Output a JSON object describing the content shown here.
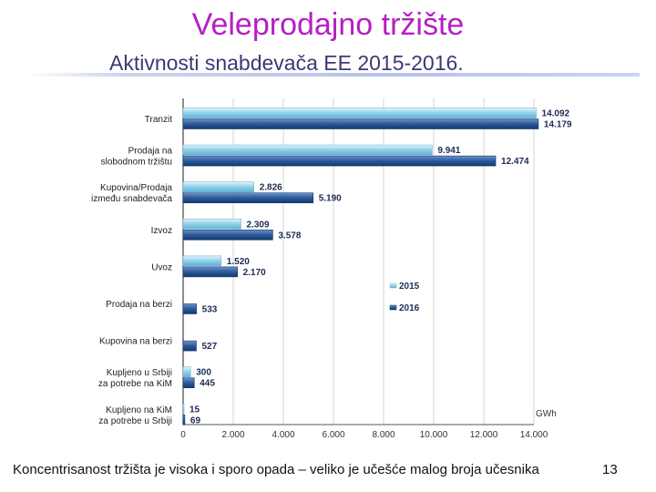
{
  "slide": {
    "title": "Veleprodajno tržište",
    "subtitle": "Aktivnosti snabdevača EE  2015-2016.",
    "footer": "Koncentrisanost tržišta je visoka i sporo opada – veliko je učešće malog broja učesnika",
    "page_number": "13"
  },
  "chart_data": {
    "type": "bar",
    "orientation": "horizontal",
    "categories": [
      [
        "Tranzit"
      ],
      [
        "Prodaja na",
        "slobodnom tržištu"
      ],
      [
        "Kupovina/Prodaja",
        "između snabdevača"
      ],
      [
        "Izvoz"
      ],
      [
        "Uvoz"
      ],
      [
        "Prodaja na berzi"
      ],
      [
        "Kupovina na berzi"
      ],
      [
        "Kupljeno u Srbiji",
        "za potrebe na KiM"
      ],
      [
        "Kupljeno na KiM",
        "za potrebe u Srbiji"
      ]
    ],
    "series": [
      {
        "name": "2015",
        "values": [
          14092,
          9941,
          2826,
          2309,
          1520,
          null,
          null,
          300,
          15
        ],
        "labels": [
          "14.092",
          "9.941",
          "2.826",
          "2.309",
          "1.520",
          "",
          "",
          "300",
          "15"
        ]
      },
      {
        "name": "2016",
        "values": [
          14179,
          12474,
          5190,
          3578,
          2170,
          533,
          527,
          445,
          69
        ],
        "labels": [
          "14.179",
          "12.474",
          "5.190",
          "3.578",
          "2.170",
          "533",
          "527",
          "445",
          "69"
        ]
      }
    ],
    "xlim": [
      0,
      14000
    ],
    "xticks": [
      0,
      2000,
      4000,
      6000,
      8000,
      10000,
      12000,
      14000
    ],
    "xtick_labels": [
      "0",
      "2.000",
      "4.000",
      "6.000",
      "8.000",
      "10.000",
      "12.000",
      "14.000"
    ],
    "unit_label": "GWh",
    "legend_position": "right",
    "grid": true,
    "colors": {
      "2015": "#8ed0e8",
      "2016": "#1f4f8f"
    }
  }
}
